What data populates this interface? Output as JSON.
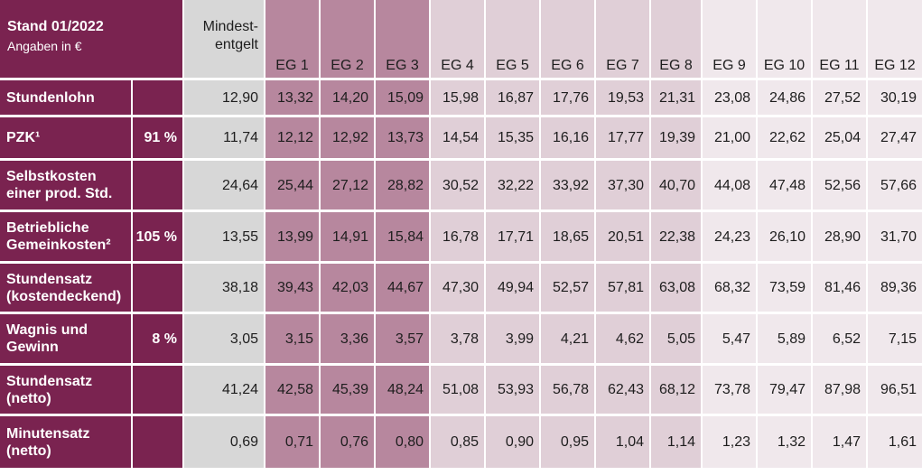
{
  "chart_data": {
    "type": "table",
    "header": {
      "title": "Stand 01/2022",
      "subtitle": "Angaben in €",
      "mindest_line1": "Mindest-",
      "mindest_line2": "entgelt"
    },
    "columns": [
      "EG 1",
      "EG 2",
      "EG 3",
      "EG 4",
      "EG 5",
      "EG 6",
      "EG 7",
      "EG 8",
      "EG 9",
      "EG 10",
      "EG 11",
      "EG 12"
    ],
    "rows": [
      {
        "label": [
          "Stundenlohn"
        ],
        "pct": "",
        "values": [
          "12,90",
          "13,32",
          "14,20",
          "15,09",
          "15,98",
          "16,87",
          "17,76",
          "19,53",
          "21,31",
          "23,08",
          "24,86",
          "27,52",
          "30,19"
        ]
      },
      {
        "label": [
          "PZK¹"
        ],
        "pct": "91 %",
        "values": [
          "11,74",
          "12,12",
          "12,92",
          "13,73",
          "14,54",
          "15,35",
          "16,16",
          "17,77",
          "19,39",
          "21,00",
          "22,62",
          "25,04",
          "27,47"
        ]
      },
      {
        "label": [
          "Selbstkosten",
          "einer prod. Std."
        ],
        "pct": "",
        "values": [
          "24,64",
          "25,44",
          "27,12",
          "28,82",
          "30,52",
          "32,22",
          "33,92",
          "37,30",
          "40,70",
          "44,08",
          "47,48",
          "52,56",
          "57,66"
        ]
      },
      {
        "label": [
          "Betriebliche",
          "Gemeinkosten²"
        ],
        "pct": "105 %",
        "values": [
          "13,55",
          "13,99",
          "14,91",
          "15,84",
          "16,78",
          "17,71",
          "18,65",
          "20,51",
          "22,38",
          "24,23",
          "26,10",
          "28,90",
          "31,70"
        ]
      },
      {
        "label": [
          "Stundensatz",
          "(kostendeckend)"
        ],
        "pct": "",
        "values": [
          "38,18",
          "39,43",
          "42,03",
          "44,67",
          "47,30",
          "49,94",
          "52,57",
          "57,81",
          "63,08",
          "68,32",
          "73,59",
          "81,46",
          "89,36"
        ]
      },
      {
        "label": [
          "Wagnis und",
          "Gewinn"
        ],
        "pct": "8 %",
        "values": [
          "3,05",
          "3,15",
          "3,36",
          "3,57",
          "3,78",
          "3,99",
          "4,21",
          "4,62",
          "5,05",
          "5,47",
          "5,89",
          "6,52",
          "7,15"
        ]
      },
      {
        "label": [
          "Stundensatz",
          "(netto)"
        ],
        "pct": "",
        "values": [
          "41,24",
          "42,58",
          "45,39",
          "48,24",
          "51,08",
          "53,93",
          "56,78",
          "62,43",
          "68,12",
          "73,78",
          "79,47",
          "87,98",
          "96,51"
        ]
      },
      {
        "label": [
          "Minutensatz",
          "(netto)"
        ],
        "pct": "",
        "values": [
          "0,69",
          "0,71",
          "0,76",
          "0,80",
          "0,85",
          "0,90",
          "0,95",
          "1,04",
          "1,14",
          "1,23",
          "1,32",
          "1,47",
          "1,61"
        ]
      }
    ],
    "colors": {
      "label_bg": "#7a2350",
      "mindest_bg": "#d7d7d7",
      "group1_bg": "#b7879e",
      "group2_bg": "#e0cfd7",
      "group3_bg": "#f0e8ec",
      "grid": "#ffffff"
    }
  }
}
